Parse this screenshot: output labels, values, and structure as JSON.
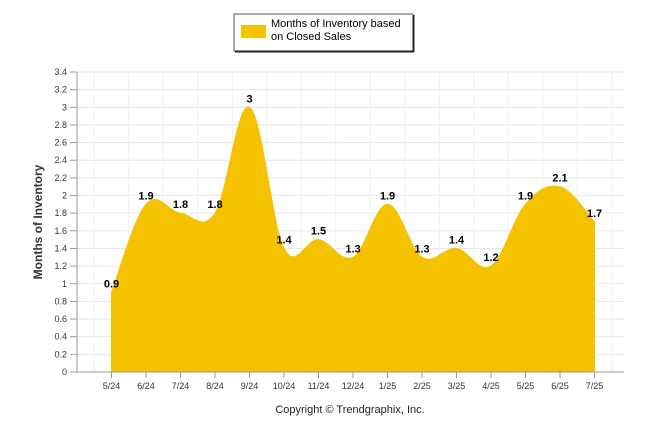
{
  "chart_data": {
    "type": "area",
    "categories": [
      "5/24",
      "6/24",
      "7/24",
      "8/24",
      "9/24",
      "10/24",
      "11/24",
      "12/24",
      "1/25",
      "2/25",
      "3/25",
      "4/25",
      "5/25",
      "6/25",
      "7/25"
    ],
    "series": [
      {
        "name": "Months of Inventory based on Closed Sales",
        "values": [
          0.9,
          1.9,
          1.8,
          1.8,
          3,
          1.4,
          1.5,
          1.3,
          1.9,
          1.3,
          1.4,
          1.2,
          1.9,
          2.1,
          1.7
        ]
      }
    ],
    "data_labels": [
      "0.9",
      "1.9",
      "1.8",
      "1.8",
      "3",
      "1.4",
      "1.5",
      "1.3",
      "1.9",
      "1.3",
      "1.4",
      "1.2",
      "1.9",
      "2.1",
      "1.7"
    ],
    "ylabel": "Months of Inventory",
    "xlabel": "",
    "ylim": [
      0,
      3.4
    ],
    "yticks": [
      "0",
      "0.2",
      "0.4",
      "0.6",
      "0.8",
      "1",
      "1.2",
      "1.4",
      "1.6",
      "1.8",
      "2",
      "2.2",
      "2.4",
      "2.6",
      "2.8",
      "3",
      "3.2",
      "3.4"
    ],
    "grid": true,
    "legend_position": "top",
    "fill_color": "#f5c200",
    "source": "Copyright © Trendgraphix, Inc."
  },
  "legend": {
    "line1": "Months of Inventory based",
    "line2": "on Closed Sales"
  }
}
